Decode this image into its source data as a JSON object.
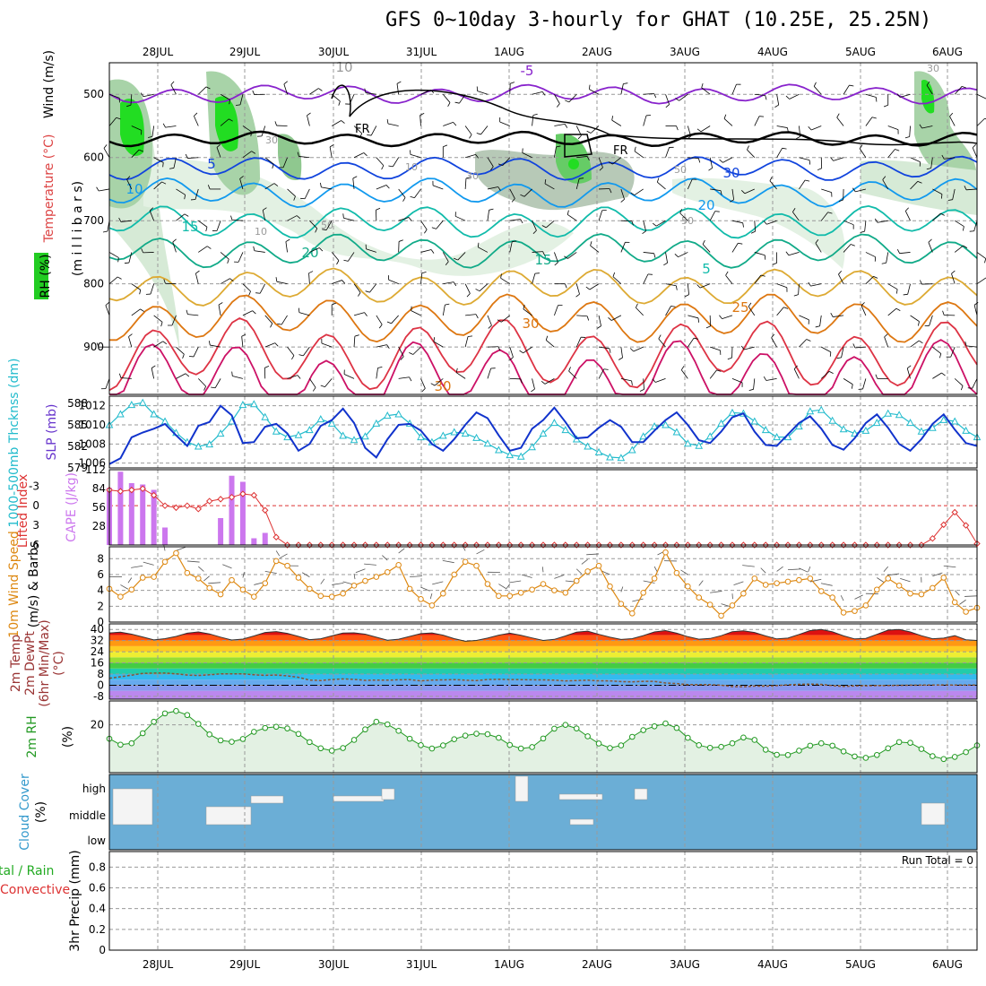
{
  "title": "GFS 0~10day 3-hourly for GHAT (10.25E, 25.25N)",
  "colors": {
    "rh_green": "#22dd22",
    "rh_light": "#e3f1e3",
    "cape": "#cc77ee",
    "lifted": "#dd3333",
    "slp": "#1133cc",
    "thick": "#22bbcc",
    "wind10": "#dd8811",
    "cloud": "#6baed6",
    "rh2m": "#229922"
  },
  "chart_data": {
    "type": "line",
    "dates": [
      "28JUL",
      "29JUL",
      "30JUL",
      "31JUL",
      "1AUG",
      "2AUG",
      "3AUG",
      "4AUG",
      "5AUG",
      "6AUG"
    ],
    "panels": {
      "upper_air": {
        "ylabels": [
          "Temperature (°C)",
          "Wind (m/s)",
          "(m i l l i b a r s)",
          "RH (%)"
        ],
        "yticks": [
          "500",
          "600",
          "700",
          "800",
          "900"
        ],
        "yrange": [
          450,
          975
        ],
        "isotherm_labels": [
          "-5",
          "5",
          "10",
          "15",
          "20",
          "15",
          "25",
          "30",
          "30",
          "10",
          "20",
          "5",
          "30"
        ],
        "special_labels": [
          "FR",
          "FR"
        ],
        "rh_labels": [
          "10",
          "30",
          "10",
          "50",
          "50",
          "30",
          "50",
          "30"
        ]
      },
      "slp_thickness": {
        "ylabels": [
          "1000-500mb Thcknss (dm)",
          "SLP (mb)"
        ],
        "left_ticks": [
          "588",
          "585",
          "582",
          "579"
        ],
        "right_ticks": [
          "1012",
          "1010",
          "1008",
          "1006"
        ],
        "slp": [
          1005.9,
          1006.5,
          1008.7,
          1009.2,
          1009.6,
          1010.1,
          1008.9,
          1007.8,
          1009.9,
          1010.3,
          1012.0,
          1011.0,
          1008.1,
          1008.2,
          1009.8,
          1010.1,
          1009.1,
          1007.3,
          1008.0,
          1009.9,
          1010.5,
          1011.7,
          1010.2,
          1007.6,
          1006.6,
          1008.5,
          1010.0,
          1010.1,
          1009.4,
          1008.0,
          1007.3,
          1008.5,
          1010.0,
          1011.3,
          1010.7,
          1008.9,
          1007.3,
          1007.6,
          1009.6,
          1010.5,
          1011.8,
          1010.3,
          1008.6,
          1008.7,
          1009.7,
          1010.5,
          1009.8,
          1008.2,
          1008.2,
          1009.4,
          1010.5,
          1011.3,
          1010.0,
          1008.4,
          1008.1,
          1009.3,
          1010.8,
          1011.2,
          1009.3,
          1007.9,
          1007.8,
          1009.0,
          1010.2,
          1010.9,
          1009.6,
          1007.9,
          1007.4,
          1008.6,
          1010.2,
          1011.1,
          1009.7,
          1008.0,
          1007.3,
          1008.5,
          1010.1,
          1011.1,
          1009.5,
          1008.1,
          1007.8
        ],
        "thickness": [
          585.0,
          586.5,
          587.8,
          588.1,
          586.5,
          585.5,
          583.9,
          582.6,
          582.0,
          582.3,
          583.8,
          585.5,
          587.8,
          587.9,
          586.1,
          584.1,
          583.3,
          583.6,
          584.3,
          585.8,
          585.2,
          583.5,
          582.9,
          583.4,
          585.2,
          586.3,
          586.5,
          585.2,
          583.3,
          582.6,
          583.5,
          584.0,
          583.8,
          583.2,
          582.4,
          581.5,
          580.8,
          580.6,
          581.9,
          583.8,
          585.3,
          584.3,
          583.0,
          582.0,
          581.2,
          580.5,
          580.4,
          581.5,
          583.4,
          584.8,
          585.0,
          584.0,
          582.4,
          582.1,
          583.4,
          585.2,
          586.7,
          586.6,
          585.5,
          584.3,
          583.3,
          583.3,
          584.8,
          586.9,
          587.1,
          585.6,
          584.4,
          583.8,
          584.2,
          585.3,
          586.6,
          586.4,
          585.3,
          584.1,
          584.6,
          585.7,
          585.5,
          584.2,
          583.3
        ]
      },
      "cape_lifted": {
        "ylabels": [
          "Lifted Index",
          "CAPE (J/kg)"
        ],
        "left_ticks": [
          "-3",
          "0",
          "3",
          "6"
        ],
        "right_ticks": [
          "112",
          "84",
          "56",
          "28"
        ],
        "cape": [
          85,
          109,
          92,
          90,
          82,
          26,
          0,
          0,
          0,
          0,
          40,
          103,
          94,
          10,
          18,
          0,
          0,
          0,
          0,
          0,
          0,
          0,
          0,
          0,
          0,
          0,
          0,
          0,
          0,
          0,
          0,
          0,
          0,
          0,
          0,
          0,
          0,
          0,
          0,
          0,
          0,
          0,
          0,
          0,
          0,
          0,
          0,
          0,
          0,
          0,
          0,
          0,
          0,
          0,
          0,
          0,
          0,
          0,
          0,
          0,
          0,
          0,
          0,
          0,
          0,
          0,
          0,
          0,
          0,
          0,
          0,
          0,
          0,
          0,
          0,
          0,
          0,
          0,
          0
        ],
        "lifted_index": [
          -2.4,
          -2.2,
          -2.4,
          -2.6,
          -1.6,
          0.0,
          0.3,
          0.0,
          0.5,
          -0.7,
          -1.0,
          -1.3,
          -1.8,
          -1.6,
          0.7,
          4.8,
          6.0,
          6.0,
          6.0,
          6.0,
          6.0,
          6.0,
          6.0,
          6.0,
          6.0,
          6.0,
          6.0,
          6.0,
          6.0,
          6.0,
          6.0,
          6.0,
          6.0,
          6.0,
          6.0,
          6.0,
          6.0,
          6.0,
          6.0,
          6.0,
          6.0,
          6.0,
          6.0,
          6.0,
          6.0,
          6.0,
          6.0,
          6.0,
          6.0,
          6.0,
          6.0,
          6.0,
          6.0,
          6.0,
          6.0,
          6.0,
          6.0,
          6.0,
          6.0,
          6.0,
          6.0,
          6.0,
          6.0,
          6.0,
          6.0,
          6.0,
          6.0,
          6.0,
          6.0,
          6.0,
          6.0,
          6.0,
          6.0,
          6.0,
          5.0,
          2.9,
          1.0,
          3.0,
          5.8
        ]
      },
      "wind10m": {
        "ylabels": [
          "10m Wind Speed",
          "(m/s)",
          "& Barbs"
        ],
        "yticks": [
          "8",
          "6",
          "4",
          "2",
          "0"
        ],
        "speed": [
          4.2,
          3.2,
          4.1,
          5.6,
          5.7,
          7.6,
          8.7,
          6.2,
          5.5,
          4.3,
          3.5,
          5.3,
          4.1,
          3.2,
          4.9,
          7.7,
          7.1,
          5.6,
          4.2,
          3.3,
          3.2,
          3.6,
          4.6,
          5.2,
          5.7,
          6.3,
          7.2,
          4.2,
          2.9,
          2.1,
          3.6,
          6.0,
          7.6,
          7.1,
          4.8,
          3.3,
          3.3,
          3.7,
          4.1,
          4.8,
          4.0,
          3.7,
          5.2,
          6.4,
          7.1,
          4.5,
          2.3,
          1.1,
          3.7,
          5.5,
          8.8,
          6.2,
          4.5,
          3.1,
          2.2,
          0.8,
          2.1,
          3.6,
          5.5,
          4.7,
          4.9,
          5.1,
          5.3,
          5.5,
          3.9,
          3.1,
          1.2,
          1.4,
          2.1,
          4.1,
          5.5,
          4.6,
          3.6,
          3.5,
          4.3,
          5.6,
          2.5,
          1.3,
          1.8
        ]
      },
      "temp2m": {
        "ylabels": [
          "2m Temp",
          "2m DewPt",
          "(6hr Min/Max)",
          "(°C)"
        ],
        "yticks": [
          "40",
          "32",
          "24",
          "16",
          "8",
          "0",
          "-8"
        ],
        "temp": [
          37.5,
          38.0,
          36.6,
          34.6,
          32.5,
          33.4,
          35.0,
          37.3,
          38.2,
          36.8,
          34.5,
          32.4,
          33.1,
          35.3,
          37.8,
          38.5,
          37.2,
          35.0,
          32.7,
          33.3,
          35.4,
          37.4,
          37.6,
          36.6,
          34.4,
          32.3,
          33.0,
          35.0,
          37.0,
          37.5,
          35.9,
          33.4,
          31.5,
          32.1,
          33.8,
          35.9,
          37.3,
          35.8,
          33.9,
          32.1,
          32.9,
          35.3,
          38.1,
          38.8,
          36.5,
          34.4,
          32.8,
          33.4,
          35.6,
          38.2,
          39.2,
          37.3,
          34.8,
          33.0,
          33.5,
          35.5,
          38.4,
          39.0,
          37.8,
          35.3,
          33.2,
          33.8,
          36.4,
          39.2,
          40.0,
          38.3,
          35.4,
          33.2,
          33.6,
          36.5,
          39.5,
          40.0,
          38.2,
          35.5,
          33.3,
          33.8,
          35.5,
          32.6,
          32.1
        ],
        "dewpt": [
          5.0,
          6.1,
          7.2,
          8.5,
          8.7,
          8.7,
          8.2,
          7.3,
          7.0,
          7.5,
          8.1,
          8.2,
          8.2,
          7.5,
          7.1,
          7.3,
          6.7,
          5.7,
          3.7,
          3.4,
          4.1,
          4.5,
          4.2,
          3.5,
          3.7,
          3.6,
          3.9,
          4.0,
          3.1,
          3.7,
          3.8,
          4.0,
          3.6,
          3.4,
          4.1,
          4.3,
          4.1,
          4.0,
          3.9,
          3.8,
          3.6,
          3.1,
          3.4,
          3.6,
          3.2,
          3.1,
          2.6,
          2.4,
          2.8,
          2.7,
          1.6,
          1.2,
          0.4,
          0.4,
          0.4,
          0.0,
          -1.0,
          -1.1,
          -0.6,
          -0.7,
          -0.3,
          0.3,
          0.7,
          0.8,
          0.6,
          -0.3,
          -0.9,
          -0.5,
          -0.4,
          -0.3,
          -0.2,
          -0.1,
          0.0,
          0.1,
          0.1,
          0.2,
          0.1,
          0.1,
          0.1
        ]
      },
      "rh2m": {
        "ylabels": [
          "2m RH",
          "(%)"
        ],
        "yticks": [
          "20"
        ],
        "rh": [
          14.2,
          11.7,
          12.3,
          16.5,
          21.3,
          24.8,
          25.8,
          24.1,
          20.4,
          16.0,
          13.5,
          12.9,
          14.1,
          17.1,
          18.7,
          19.2,
          18.5,
          16.2,
          12.8,
          10.2,
          9.2,
          10.3,
          13.7,
          18.1,
          21.3,
          20.2,
          17.5,
          14.2,
          11.5,
          10.1,
          11.4,
          14.0,
          15.5,
          16.3,
          16.1,
          14.6,
          11.6,
          10.1,
          10.7,
          14.3,
          18.4,
          20.0,
          18.5,
          15.2,
          12.2,
          10.3,
          11.4,
          15.0,
          17.8,
          19.4,
          20.6,
          18.7,
          14.6,
          11.5,
          10.4,
          10.8,
          12.3,
          14.7,
          13.7,
          9.6,
          7.5,
          7.4,
          9.2,
          11.3,
          12.3,
          11.3,
          8.9,
          6.8,
          6.2,
          7.4,
          10.2,
          12.8,
          12.5,
          9.9,
          6.9,
          5.7,
          6.6,
          8.6,
          11.4
        ]
      },
      "cloud": {
        "ylabels": [
          "Cloud Cover",
          "(%)"
        ],
        "yticks": [
          "high",
          "middle",
          "low"
        ]
      },
      "precip": {
        "ylabels": [
          "3hr Precip (mm)",
          "tal / Rain",
          "Convective"
        ],
        "yticks": [
          "0.8",
          "0.6",
          "0.4",
          "0.2",
          "0"
        ],
        "run_total": "Run Total = 0",
        "values": [
          0,
          0,
          0,
          0,
          0,
          0,
          0,
          0,
          0,
          0,
          0,
          0,
          0,
          0,
          0,
          0,
          0,
          0,
          0,
          0,
          0,
          0,
          0,
          0,
          0,
          0,
          0,
          0,
          0,
          0,
          0,
          0,
          0,
          0,
          0,
          0,
          0,
          0,
          0,
          0,
          0,
          0,
          0,
          0,
          0,
          0,
          0,
          0,
          0,
          0,
          0,
          0,
          0,
          0,
          0,
          0,
          0,
          0,
          0,
          0,
          0,
          0,
          0,
          0,
          0,
          0,
          0,
          0,
          0,
          0,
          0,
          0,
          0,
          0,
          0,
          0,
          0,
          0,
          0
        ]
      }
    }
  }
}
